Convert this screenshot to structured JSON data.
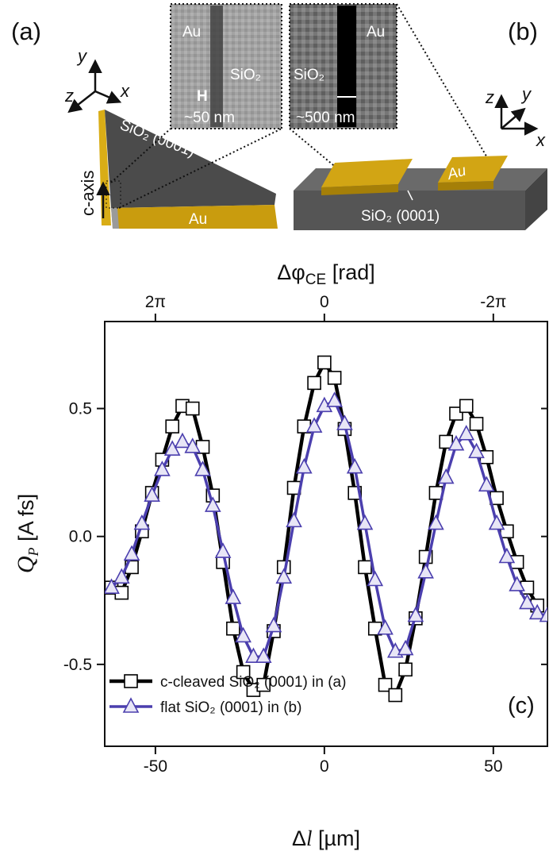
{
  "diagram": {
    "panel_a": {
      "label": "(a)",
      "axes": [
        "y",
        "z",
        "x"
      ],
      "top_face": "SiO₂ (0001)",
      "gold": "Au",
      "c_axis": "c-axis"
    },
    "panel_b": {
      "label": "(b)",
      "axes": [
        "z",
        "y",
        "x"
      ],
      "gold": "Au",
      "substrate": "SiO₂ (0001)"
    },
    "inset_a": {
      "left": "Au",
      "gap": "SiO₂",
      "scale": "~50 nm"
    },
    "inset_b": {
      "gap": "SiO₂",
      "right": "Au",
      "scale": "~500 nm"
    }
  },
  "chart_data": {
    "type": "line",
    "xlabel": [
      "Δ",
      "l",
      " [µm]"
    ],
    "ylabel": [
      "Q",
      "P",
      " [A fs]"
    ],
    "x2label": [
      "Δφ",
      "CE",
      " [rad]"
    ],
    "panel_label": "(c)",
    "x": [
      -63,
      -60,
      -57,
      -54,
      -51,
      -48,
      -45,
      -42,
      -39,
      -36,
      -33,
      -30,
      -27,
      -24,
      -21,
      -18,
      -15,
      -12,
      -9,
      -6,
      -3,
      0,
      3,
      6,
      9,
      12,
      15,
      18,
      21,
      24,
      27,
      30,
      33,
      36,
      39,
      42,
      45,
      48,
      51,
      54,
      57,
      60,
      63,
      66
    ],
    "series": [
      {
        "name": "c-cleaved SiO₂ (0001) in (a)",
        "color": "#000000",
        "marker": "square",
        "values": [
          -0.2,
          -0.22,
          -0.12,
          0.02,
          0.17,
          0.3,
          0.43,
          0.51,
          0.5,
          0.35,
          0.16,
          -0.1,
          -0.36,
          -0.53,
          -0.6,
          -0.58,
          -0.37,
          -0.12,
          0.19,
          0.43,
          0.6,
          0.68,
          0.62,
          0.42,
          0.17,
          -0.12,
          -0.36,
          -0.58,
          -0.62,
          -0.52,
          -0.32,
          -0.08,
          0.17,
          0.37,
          0.48,
          0.51,
          0.44,
          0.31,
          0.15,
          0.02,
          -0.1,
          -0.2,
          -0.27,
          null
        ]
      },
      {
        "name": "flat SiO₂ (0001) in (b)",
        "color": "#4b3fae",
        "marker": "triangle",
        "values": [
          -0.2,
          -0.16,
          -0.07,
          0.05,
          0.16,
          0.26,
          0.34,
          0.37,
          0.35,
          0.26,
          0.12,
          -0.06,
          -0.24,
          -0.39,
          -0.47,
          -0.47,
          -0.35,
          -0.16,
          0.06,
          0.27,
          0.43,
          0.51,
          0.53,
          0.44,
          0.27,
          0.05,
          -0.17,
          -0.36,
          -0.45,
          -0.44,
          -0.31,
          -0.14,
          0.05,
          0.23,
          0.36,
          0.4,
          0.33,
          0.2,
          0.05,
          -0.08,
          -0.19,
          -0.26,
          -0.3,
          -0.31
        ]
      }
    ],
    "xlim": [
      -65,
      66
    ],
    "xticks": [
      -50,
      0,
      50
    ],
    "ylim": [
      -0.82,
      0.84
    ],
    "yticks": [
      0.5,
      {
        "value": 0,
        "label": "0.0"
      },
      -0.5
    ],
    "x2lim": [
      8.168,
      -8.294
    ],
    "x2ticks": [
      {
        "value": 6.283,
        "label": "2π"
      },
      0,
      {
        "value": -6.283,
        "label": "-2π"
      }
    ],
    "grid": false,
    "legend": "lower left"
  }
}
